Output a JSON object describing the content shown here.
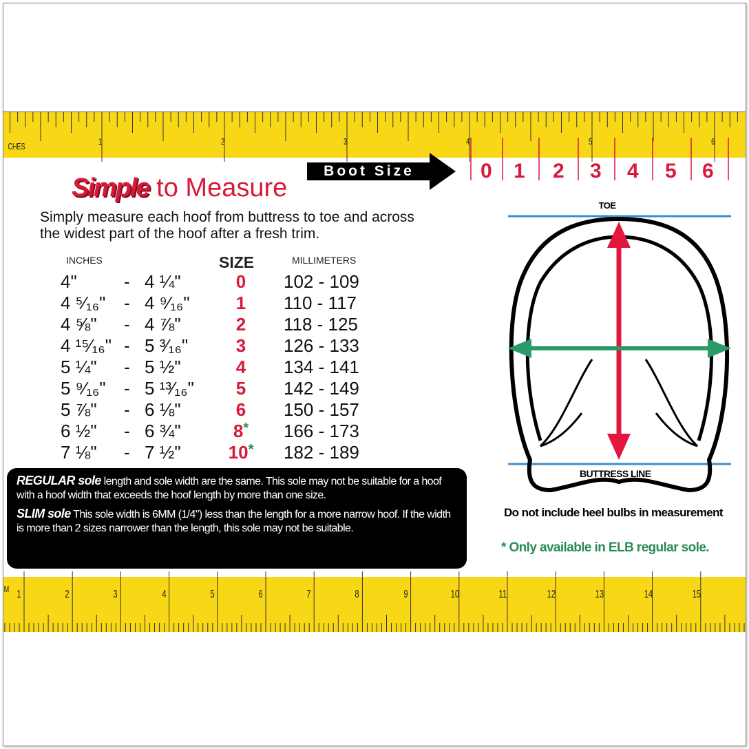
{
  "top_ruler": {
    "unit_label": "CHES",
    "numbers": [
      "1",
      "2",
      "3",
      "4",
      "5",
      "6"
    ]
  },
  "boot_size": {
    "label": "Boot Size",
    "sizes": [
      "0",
      "1",
      "2",
      "3",
      "4",
      "5",
      "6"
    ]
  },
  "title": {
    "emphasis": "Simple",
    "rest": " to Measure"
  },
  "intro": "Simply measure each hoof from buttress to toe and across the widest part of the hoof after a fresh trim.",
  "table": {
    "headers": {
      "inches": "INCHES",
      "size": "SIZE",
      "mm": "MILLIMETERS"
    },
    "rows": [
      {
        "from": "4\"",
        "to": "4 ¼\"",
        "size": "0",
        "star": "",
        "mm": "102 - 109"
      },
      {
        "from": "4 ⁵⁄₁₆\"",
        "to": "4 ⁹⁄₁₆\"",
        "size": "1",
        "star": "",
        "mm": "110 - 117"
      },
      {
        "from": "4 ⅝\"",
        "to": "4 ⅞\"",
        "size": "2",
        "star": "",
        "mm": "118 - 125"
      },
      {
        "from": "4 ¹⁵⁄₁₆\"",
        "to": "5 ³⁄₁₆\"",
        "size": "3",
        "star": "",
        "mm": "126 - 133"
      },
      {
        "from": "5 ¼\"",
        "to": "5 ½\"",
        "size": "4",
        "star": "",
        "mm": "134 - 141"
      },
      {
        "from": "5 ⁹⁄₁₆\"",
        "to": "5 ¹³⁄₁₆\"",
        "size": "5",
        "star": "",
        "mm": "142 - 149"
      },
      {
        "from": "5 ⅞\"",
        "to": "6 ⅛\"",
        "size": "6",
        "star": "",
        "mm": "150 - 157"
      },
      {
        "from": "6 ½\"",
        "to": "6 ¾\"",
        "size": "8",
        "star": "*",
        "mm": "166 - 173"
      },
      {
        "from": "7 ⅛\"",
        "to": "7 ½\"",
        "size": "10",
        "star": "*",
        "mm": "182 - 189"
      }
    ],
    "dash": "-"
  },
  "sole_info": {
    "regular_key": "REGULAR sole",
    "regular_text": " length and sole width are the same. This sole may not be suitable for a hoof with a hoof width that exceeds the hoof length by more than one size.",
    "slim_key": "SLIM sole",
    "slim_text": " This sole width is 6MM (1/4\") less than the length for a more narrow hoof. If the width is more than 2 sizes narrower than the length, this sole may not be suitable."
  },
  "diagram": {
    "toe_label": "TOE",
    "buttress_label": "BUTTRESS LINE"
  },
  "notes": {
    "heel": "Do not include heel bulbs in measurement",
    "elb": "* Only available in ELB regular sole."
  },
  "bottom_ruler": {
    "unit_label": "M",
    "numbers": [
      "1",
      "2",
      "3",
      "4",
      "5",
      "6",
      "7",
      "8",
      "9",
      "10",
      "11",
      "12",
      "13",
      "14",
      "15"
    ]
  },
  "colors": {
    "ruler": "#f7d716",
    "red": "#d8193a",
    "green": "#2a8a5a",
    "blue": "#3a8fd0"
  }
}
